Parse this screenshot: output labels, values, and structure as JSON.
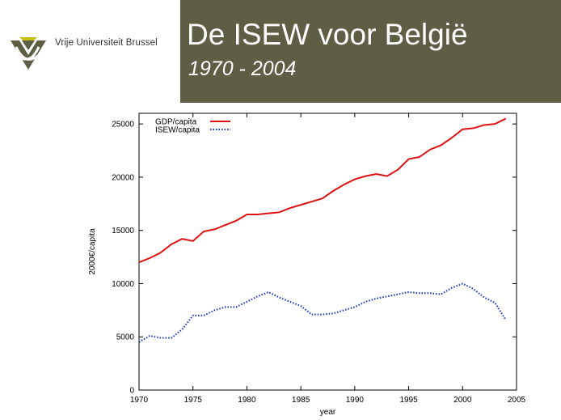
{
  "header": {
    "org_name": "Vrije Universiteit Brussel",
    "title": "De ISEW voor België",
    "subtitle": "1970 - 2004",
    "background_color": "#5e5e45",
    "logo_colors": {
      "primary": "#5e5e45",
      "accent": "#c8c000"
    }
  },
  "chart_data": {
    "type": "line",
    "title": "",
    "xlabel": "year",
    "ylabel": "2000€/capita",
    "xlim": [
      1970,
      2005
    ],
    "ylim": [
      0,
      26000
    ],
    "x_ticks": [
      "1970",
      "1975",
      "1980",
      "1985",
      "1990",
      "1995",
      "2000",
      "2005"
    ],
    "y_ticks": [
      "0",
      "5000",
      "10000",
      "15000",
      "20000",
      "25000"
    ],
    "grid": false,
    "legend_position": "top-left",
    "x": [
      1970,
      1971,
      1972,
      1973,
      1974,
      1975,
      1976,
      1977,
      1978,
      1979,
      1980,
      1981,
      1982,
      1983,
      1984,
      1985,
      1986,
      1987,
      1988,
      1989,
      1990,
      1991,
      1992,
      1993,
      1994,
      1995,
      1996,
      1997,
      1998,
      1999,
      2000,
      2001,
      2002,
      2003,
      2004
    ],
    "series": [
      {
        "name": "GDP/capita",
        "color": "#dd1111",
        "style": "solid",
        "values": [
          12000,
          12400,
          12900,
          13700,
          14200,
          14000,
          14900,
          15100,
          15500,
          15900,
          16500,
          16500,
          16600,
          16700,
          17100,
          17400,
          17700,
          18000,
          18700,
          19300,
          19800,
          20100,
          20300,
          20100,
          20700,
          21700,
          21900,
          22600,
          23000,
          23700,
          24500,
          24600,
          24900,
          25000,
          25500
        ]
      },
      {
        "name": "ISEW/capita",
        "color": "#1133cc",
        "style": "dotted",
        "values": [
          4500,
          5100,
          4900,
          4900,
          5700,
          7000,
          7000,
          7500,
          7800,
          7800,
          8300,
          8800,
          9200,
          8700,
          8300,
          7900,
          7100,
          7100,
          7200,
          7500,
          7800,
          8300,
          8600,
          8800,
          9000,
          9200,
          9100,
          9100,
          9000,
          9600,
          10000,
          9500,
          8700,
          8200,
          6600
        ]
      }
    ]
  }
}
